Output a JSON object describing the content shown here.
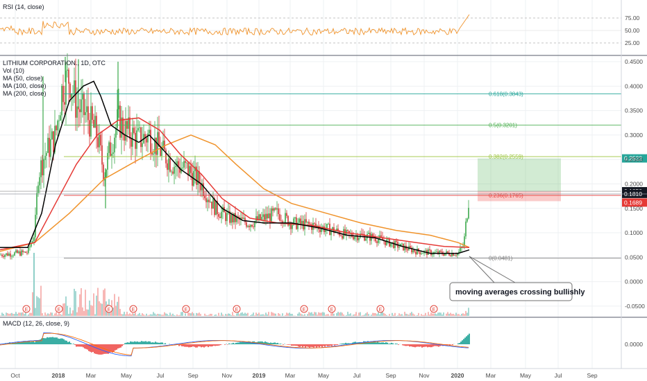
{
  "colors": {
    "up": "#26a69a",
    "down": "#ef5350",
    "candle_up": "#3aa84a",
    "candle_down": "#d32f2f",
    "ma50": "#000000",
    "ma100": "#e53935",
    "ma200": "#f0932b",
    "rsi": "#f0932b",
    "fib0": "#7f7f7f",
    "fib236": "#e53935",
    "fib382": "#9bc53d",
    "fib5": "#4caf50",
    "fib618": "#26a69a",
    "grid": "#eef0f3"
  },
  "rsi_panel": {
    "legend": "RSI (14, close)",
    "ticks": [
      "75.00",
      "50.00",
      "25.00"
    ]
  },
  "main_panel": {
    "legend": [
      "LITHIUM CORPORATION., 1D, OTC",
      "Vol (10)",
      "MA (50, close)",
      "MA (100, close)",
      "MA (200, close)"
    ],
    "price_ticks": [
      "0.4500",
      "0.4000",
      "0.3500",
      "0.3000",
      "0.2500",
      "0.2000",
      "0.1500",
      "0.1000",
      "0.0500",
      "0.0000",
      "-0.0500"
    ],
    "price_tags": [
      {
        "text": "0.2522",
        "color": "#26a69a"
      },
      {
        "text": "0.1850",
        "color": "#131722"
      },
      {
        "text": "0.1810",
        "color": "#131722"
      },
      {
        "text": "0.1689",
        "color": "#e53935"
      }
    ],
    "fib_labels": [
      "0.618(0.3843)",
      "0.5(0.3201)",
      "0.382(0.2559)",
      "0.236(0.1765)",
      "0(0.0481)"
    ],
    "annotation": "moving averages crossing bullishly",
    "earnings_marker": "E"
  },
  "macd_panel": {
    "legend": "MACD (12, 26, close, 9)",
    "ticks": [
      "0.0000"
    ]
  },
  "time_axis": [
    "Oct",
    "2018",
    "Mar",
    "May",
    "Jul",
    "Sep",
    "Nov",
    "2019",
    "Mar",
    "May",
    "Jul",
    "Sep",
    "Nov",
    "2020",
    "Mar",
    "May",
    "Jul",
    "Sep"
  ],
  "chart_data": {
    "type": "line",
    "title": "LITHIUM CORPORATION., 1D, OTC",
    "x": [
      "Oct",
      "2018",
      "Mar",
      "May",
      "Jul",
      "Sep",
      "Nov",
      "2019",
      "Mar",
      "May",
      "Jul",
      "Sep",
      "Nov",
      "2020"
    ],
    "series": [
      {
        "name": "MA (50, close)",
        "values": [
          0.06,
          0.24,
          0.4,
          0.3,
          0.28,
          0.2,
          0.17,
          0.12,
          0.12,
          0.1,
          0.09,
          0.07,
          0.06,
          0.07
        ]
      },
      {
        "name": "MA (100, close)",
        "values": [
          0.06,
          0.18,
          0.3,
          0.34,
          0.28,
          0.24,
          0.18,
          0.14,
          0.12,
          0.11,
          0.1,
          0.08,
          0.065,
          0.068
        ]
      },
      {
        "name": "MA (200, close)",
        "values": [
          0.055,
          0.12,
          0.2,
          0.24,
          0.28,
          0.3,
          0.24,
          0.16,
          0.13,
          0.12,
          0.1,
          0.09,
          0.08,
          0.07
        ]
      }
    ],
    "fibonacci": [
      {
        "level": "0.618",
        "price": 0.3843
      },
      {
        "level": "0.5",
        "price": 0.3201
      },
      {
        "level": "0.382",
        "price": 0.2559
      },
      {
        "level": "0.236",
        "price": 0.1765
      },
      {
        "level": "0",
        "price": 0.0481
      }
    ],
    "current_price": 0.181,
    "target_price": 0.2522,
    "stop_price": 0.1689,
    "entry_price": 0.185,
    "ylim": [
      -0.07,
      0.46
    ],
    "rsi_last": 80,
    "legend": "top-left"
  }
}
